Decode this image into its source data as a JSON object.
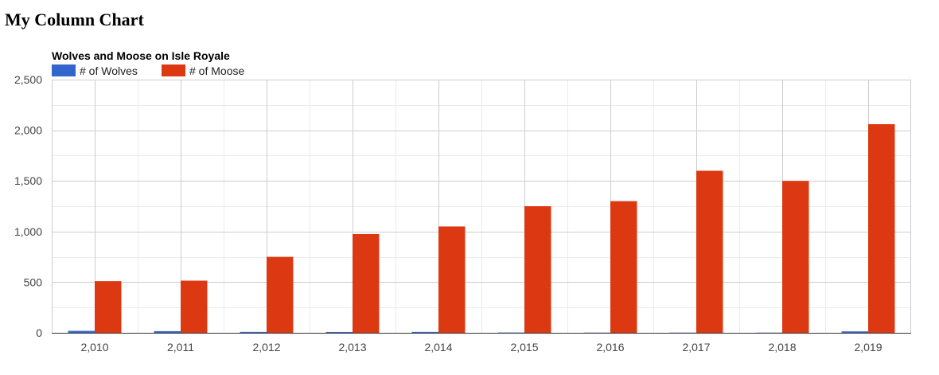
{
  "page": {
    "heading": "My Column Chart"
  },
  "chart_data": {
    "type": "bar",
    "title": "Wolves and Moose on Isle Royale",
    "xlabel": "",
    "ylabel": "",
    "categories": [
      "2,010",
      "2,011",
      "2,012",
      "2,013",
      "2,014",
      "2,015",
      "2,016",
      "2,017",
      "2,018",
      "2,019"
    ],
    "series": [
      {
        "name": "# of Wolves",
        "color": "#3366cc",
        "values": [
          19,
          16,
          9,
          8,
          9,
          3,
          2,
          2,
          2,
          14
        ]
      },
      {
        "name": "# of Moose",
        "color": "#dc3912",
        "values": [
          510,
          515,
          750,
          975,
          1050,
          1250,
          1300,
          1600,
          1500,
          2060
        ]
      }
    ],
    "ylim": [
      0,
      2500
    ],
    "y_ticks": [
      "0",
      "500",
      "1,000",
      "1,500",
      "2,000",
      "2,500"
    ],
    "y_tick_values": [
      0,
      500,
      1000,
      1500,
      2000,
      2500
    ],
    "grid": true,
    "legend_position": "top-left"
  }
}
